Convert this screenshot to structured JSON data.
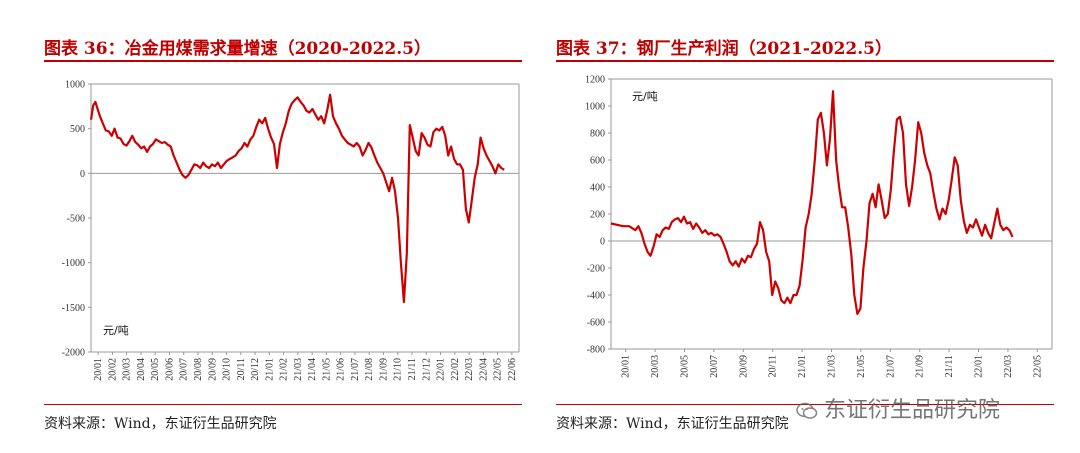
{
  "watermark": {
    "text": "东证衍生品研究院",
    "icon": "wechat-icon"
  },
  "chart_data": [
    {
      "type": "line",
      "title": "图表 36：冶金用煤需求量增速（2020-2022.5）",
      "source": "资料来源：Wind，东证衍生品研究院",
      "unit_label": "元/吨",
      "color": "#cc0000",
      "ylim": [
        -2000,
        1000
      ],
      "yticks": [
        1000,
        500,
        0,
        -500,
        -1000,
        -1500,
        -2000
      ],
      "xticks": [
        "20/01",
        "20/02",
        "20/03",
        "20/04",
        "20/05",
        "20/06",
        "20/07",
        "20/08",
        "20/09",
        "20/10",
        "20/11",
        "20/12",
        "21/01",
        "21/02",
        "21/03",
        "21/04",
        "21/05",
        "21/06",
        "21/07",
        "21/08",
        "21/09",
        "21/10",
        "21/11",
        "21/12",
        "22/01",
        "22/02",
        "22/03",
        "22/04",
        "22/05",
        "22/06"
      ],
      "x_range": [
        0,
        29
      ],
      "series": [
        {
          "points": [
            [
              0.0,
              600
            ],
            [
              0.15,
              760
            ],
            [
              0.3,
              800
            ],
            [
              0.45,
              720
            ],
            [
              0.6,
              640
            ],
            [
              0.8,
              560
            ],
            [
              1.0,
              480
            ],
            [
              1.2,
              470
            ],
            [
              1.4,
              420
            ],
            [
              1.6,
              500
            ],
            [
              1.8,
              400
            ],
            [
              2.0,
              390
            ],
            [
              2.2,
              330
            ],
            [
              2.4,
              310
            ],
            [
              2.6,
              360
            ],
            [
              2.8,
              420
            ],
            [
              3.0,
              350
            ],
            [
              3.2,
              320
            ],
            [
              3.4,
              280
            ],
            [
              3.6,
              300
            ],
            [
              3.8,
              240
            ],
            [
              4.0,
              300
            ],
            [
              4.2,
              330
            ],
            [
              4.4,
              380
            ],
            [
              4.6,
              360
            ],
            [
              4.8,
              340
            ],
            [
              5.0,
              350
            ],
            [
              5.2,
              320
            ],
            [
              5.4,
              300
            ],
            [
              5.6,
              200
            ],
            [
              5.8,
              120
            ],
            [
              6.0,
              40
            ],
            [
              6.2,
              -20
            ],
            [
              6.4,
              -50
            ],
            [
              6.6,
              -20
            ],
            [
              6.8,
              40
            ],
            [
              7.0,
              100
            ],
            [
              7.2,
              90
            ],
            [
              7.4,
              60
            ],
            [
              7.6,
              120
            ],
            [
              7.8,
              80
            ],
            [
              8.0,
              60
            ],
            [
              8.2,
              100
            ],
            [
              8.4,
              80
            ],
            [
              8.6,
              120
            ],
            [
              8.8,
              60
            ],
            [
              9.0,
              100
            ],
            [
              9.2,
              140
            ],
            [
              9.4,
              160
            ],
            [
              9.6,
              180
            ],
            [
              9.8,
              200
            ],
            [
              10.0,
              250
            ],
            [
              10.2,
              280
            ],
            [
              10.4,
              340
            ],
            [
              10.6,
              300
            ],
            [
              10.8,
              380
            ],
            [
              11.0,
              420
            ],
            [
              11.2,
              520
            ],
            [
              11.4,
              600
            ],
            [
              11.6,
              560
            ],
            [
              11.8,
              620
            ],
            [
              12.0,
              500
            ],
            [
              12.2,
              400
            ],
            [
              12.4,
              330
            ],
            [
              12.6,
              60
            ],
            [
              12.8,
              330
            ],
            [
              13.0,
              460
            ],
            [
              13.2,
              560
            ],
            [
              13.4,
              700
            ],
            [
              13.6,
              780
            ],
            [
              13.8,
              820
            ],
            [
              14.0,
              850
            ],
            [
              14.2,
              800
            ],
            [
              14.4,
              760
            ],
            [
              14.6,
              700
            ],
            [
              14.8,
              680
            ],
            [
              15.0,
              720
            ],
            [
              15.2,
              660
            ],
            [
              15.4,
              600
            ],
            [
              15.6,
              640
            ],
            [
              15.8,
              560
            ],
            [
              16.0,
              700
            ],
            [
              16.2,
              880
            ],
            [
              16.4,
              640
            ],
            [
              16.6,
              560
            ],
            [
              16.8,
              500
            ],
            [
              17.0,
              420
            ],
            [
              17.2,
              380
            ],
            [
              17.4,
              340
            ],
            [
              17.6,
              320
            ],
            [
              17.8,
              300
            ],
            [
              18.0,
              340
            ],
            [
              18.2,
              300
            ],
            [
              18.4,
              200
            ],
            [
              18.6,
              260
            ],
            [
              18.8,
              340
            ],
            [
              19.0,
              290
            ],
            [
              19.2,
              200
            ],
            [
              19.4,
              120
            ],
            [
              19.6,
              60
            ],
            [
              19.8,
              0
            ],
            [
              20.0,
              -100
            ],
            [
              20.2,
              -200
            ],
            [
              20.4,
              -50
            ],
            [
              20.6,
              -200
            ],
            [
              20.8,
              -500
            ],
            [
              21.0,
              -1000
            ],
            [
              21.2,
              -1440
            ],
            [
              21.4,
              -900
            ],
            [
              21.6,
              540
            ],
            [
              21.8,
              400
            ],
            [
              22.0,
              250
            ],
            [
              22.2,
              200
            ],
            [
              22.4,
              450
            ],
            [
              22.6,
              400
            ],
            [
              22.8,
              320
            ],
            [
              23.0,
              300
            ],
            [
              23.2,
              460
            ],
            [
              23.4,
              500
            ],
            [
              23.6,
              480
            ],
            [
              23.8,
              520
            ],
            [
              24.0,
              420
            ],
            [
              24.2,
              200
            ],
            [
              24.4,
              300
            ],
            [
              24.6,
              160
            ],
            [
              24.8,
              100
            ],
            [
              25.0,
              100
            ],
            [
              25.2,
              40
            ],
            [
              25.4,
              -400
            ],
            [
              25.6,
              -550
            ],
            [
              25.8,
              -300
            ],
            [
              26.0,
              -50
            ],
            [
              26.2,
              100
            ],
            [
              26.4,
              400
            ],
            [
              26.6,
              280
            ],
            [
              26.8,
              200
            ],
            [
              27.0,
              140
            ],
            [
              27.2,
              80
            ],
            [
              27.4,
              0
            ],
            [
              27.6,
              100
            ],
            [
              27.8,
              60
            ],
            [
              28.0,
              40
            ]
          ]
        }
      ]
    },
    {
      "type": "line",
      "title": "图表 37：钢厂生产利润（2021-2022.5）",
      "source": "资料来源：Wind，东证衍生品研究院",
      "unit_label": "元/吨",
      "color": "#cc0000",
      "ylim": [
        -800,
        1200
      ],
      "yticks": [
        1200,
        1000,
        800,
        600,
        400,
        200,
        0,
        -200,
        -400,
        -600,
        -800
      ],
      "xticks": [
        "20/01",
        "20/03",
        "20/05",
        "20/07",
        "20/09",
        "20/11",
        "21/01",
        "21/03",
        "21/05",
        "21/07",
        "21/09",
        "21/11",
        "22/01",
        "22/03",
        "22/05"
      ],
      "x_range": [
        0,
        29
      ],
      "series": [
        {
          "points": [
            [
              0.0,
              130
            ],
            [
              0.4,
              120
            ],
            [
              0.8,
              110
            ],
            [
              1.2,
              110
            ],
            [
              1.6,
              80
            ],
            [
              1.8,
              110
            ],
            [
              2.0,
              60
            ],
            [
              2.2,
              -20
            ],
            [
              2.4,
              -80
            ],
            [
              2.6,
              -110
            ],
            [
              2.8,
              -40
            ],
            [
              3.0,
              50
            ],
            [
              3.2,
              30
            ],
            [
              3.4,
              80
            ],
            [
              3.6,
              100
            ],
            [
              3.8,
              90
            ],
            [
              4.0,
              140
            ],
            [
              4.2,
              160
            ],
            [
              4.4,
              170
            ],
            [
              4.6,
              140
            ],
            [
              4.8,
              180
            ],
            [
              5.0,
              130
            ],
            [
              5.2,
              140
            ],
            [
              5.4,
              90
            ],
            [
              5.6,
              130
            ],
            [
              5.8,
              100
            ],
            [
              6.0,
              60
            ],
            [
              6.2,
              80
            ],
            [
              6.4,
              50
            ],
            [
              6.6,
              60
            ],
            [
              6.8,
              40
            ],
            [
              7.0,
              50
            ],
            [
              7.2,
              30
            ],
            [
              7.4,
              -20
            ],
            [
              7.6,
              -80
            ],
            [
              7.8,
              -150
            ],
            [
              8.0,
              -180
            ],
            [
              8.2,
              -150
            ],
            [
              8.4,
              -190
            ],
            [
              8.6,
              -130
            ],
            [
              8.8,
              -160
            ],
            [
              9.0,
              -110
            ],
            [
              9.2,
              -120
            ],
            [
              9.4,
              -60
            ],
            [
              9.6,
              -20
            ],
            [
              9.8,
              140
            ],
            [
              10.0,
              80
            ],
            [
              10.2,
              -80
            ],
            [
              10.4,
              -150
            ],
            [
              10.6,
              -400
            ],
            [
              10.8,
              -300
            ],
            [
              11.0,
              -350
            ],
            [
              11.2,
              -440
            ],
            [
              11.4,
              -460
            ],
            [
              11.6,
              -420
            ],
            [
              11.8,
              -460
            ],
            [
              12.0,
              -400
            ],
            [
              12.2,
              -400
            ],
            [
              12.4,
              -330
            ],
            [
              12.6,
              -140
            ],
            [
              12.8,
              100
            ],
            [
              13.0,
              200
            ],
            [
              13.2,
              350
            ],
            [
              13.4,
              600
            ],
            [
              13.6,
              900
            ],
            [
              13.8,
              950
            ],
            [
              14.0,
              800
            ],
            [
              14.2,
              560
            ],
            [
              14.4,
              760
            ],
            [
              14.6,
              1110
            ],
            [
              14.8,
              600
            ],
            [
              15.0,
              400
            ],
            [
              15.2,
              250
            ],
            [
              15.4,
              250
            ],
            [
              15.6,
              100
            ],
            [
              15.8,
              -100
            ],
            [
              16.0,
              -400
            ],
            [
              16.2,
              -540
            ],
            [
              16.4,
              -500
            ],
            [
              16.6,
              -200
            ],
            [
              16.8,
              0
            ],
            [
              17.0,
              280
            ],
            [
              17.2,
              350
            ],
            [
              17.4,
              250
            ],
            [
              17.6,
              420
            ],
            [
              17.8,
              300
            ],
            [
              18.0,
              170
            ],
            [
              18.2,
              200
            ],
            [
              18.4,
              380
            ],
            [
              18.6,
              660
            ],
            [
              18.8,
              900
            ],
            [
              19.0,
              920
            ],
            [
              19.2,
              800
            ],
            [
              19.4,
              420
            ],
            [
              19.6,
              260
            ],
            [
              19.8,
              400
            ],
            [
              20.0,
              600
            ],
            [
              20.2,
              880
            ],
            [
              20.4,
              800
            ],
            [
              20.6,
              650
            ],
            [
              20.8,
              560
            ],
            [
              21.0,
              500
            ],
            [
              21.2,
              360
            ],
            [
              21.4,
              240
            ],
            [
              21.6,
              160
            ],
            [
              21.8,
              240
            ],
            [
              22.0,
              200
            ],
            [
              22.2,
              300
            ],
            [
              22.4,
              450
            ],
            [
              22.6,
              620
            ],
            [
              22.8,
              560
            ],
            [
              23.0,
              300
            ],
            [
              23.2,
              150
            ],
            [
              23.4,
              60
            ],
            [
              23.6,
              120
            ],
            [
              23.8,
              100
            ],
            [
              24.0,
              160
            ],
            [
              24.2,
              100
            ],
            [
              24.4,
              40
            ],
            [
              24.6,
              120
            ],
            [
              24.8,
              60
            ],
            [
              25.0,
              20
            ],
            [
              25.2,
              130
            ],
            [
              25.4,
              240
            ],
            [
              25.6,
              120
            ],
            [
              25.8,
              80
            ],
            [
              26.0,
              100
            ],
            [
              26.2,
              80
            ],
            [
              26.4,
              30
            ]
          ]
        }
      ]
    }
  ]
}
